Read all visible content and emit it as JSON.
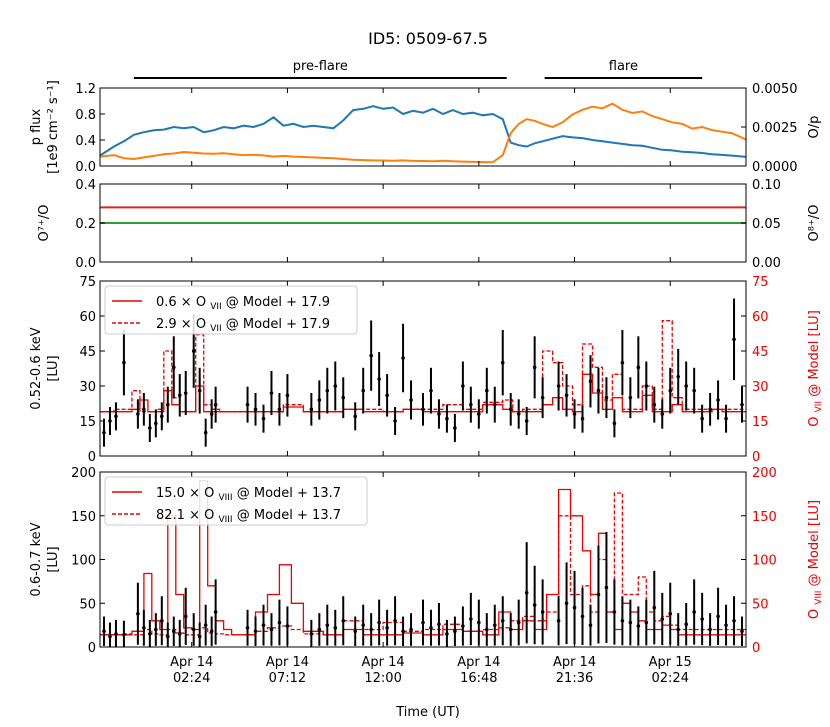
{
  "title": "ID5: 0509-67.5",
  "x_axis": {
    "label": "Time (UT)",
    "range_hours": [
      -2.2,
      30.2
    ],
    "tick_hours": [
      2.4,
      7.2,
      12.0,
      16.8,
      21.6,
      26.4
    ],
    "tick_labels": [
      [
        "Apr 14",
        "02:24"
      ],
      [
        "Apr 14",
        "07:12"
      ],
      [
        "Apr 14",
        "12:00"
      ],
      [
        "Apr 14",
        "16:48"
      ],
      [
        "Apr 14",
        "21:36"
      ],
      [
        "Apr 15",
        "02:24"
      ]
    ]
  },
  "intervals": [
    {
      "label": "pre-flare",
      "start": -0.5,
      "end": 18.2
    },
    {
      "label": "flare",
      "start": 20.1,
      "end": 28.0
    }
  ],
  "colors": {
    "p_flux": "#1f77b4",
    "o_p": "#ff7f0e",
    "o7": "#d62728",
    "o8": "#2ca02c",
    "data": "#000000",
    "model": "#ee0000",
    "interval_bar": "#000000"
  },
  "chart_data": [
    {
      "type": "line",
      "panel": "flux",
      "ylabel": [
        "p flux",
        "[1e9 cm⁻² s⁻¹]"
      ],
      "ylim": [
        0,
        1.2
      ],
      "yticks": [
        0.0,
        0.4,
        0.8,
        1.2
      ],
      "ytick_labels": [
        "0.0",
        "0.4",
        "0.8",
        "1.2"
      ],
      "y2label": "O/p",
      "y2lim": [
        0,
        0.005
      ],
      "y2ticks": [
        0,
        0.0025,
        0.005
      ],
      "y2tick_labels": [
        "0.0000",
        "0.0025",
        "0.0050"
      ],
      "series": [
        {
          "name": "p flux",
          "axis": "left",
          "x": [
            -2.2,
            -1.5,
            -1.0,
            -0.5,
            0.0,
            0.5,
            1.0,
            1.5,
            2.0,
            2.5,
            3.0,
            3.5,
            4.0,
            4.5,
            5.0,
            5.5,
            6.0,
            6.5,
            7.0,
            7.5,
            8.0,
            8.5,
            9.0,
            9.5,
            10.0,
            10.5,
            11.0,
            11.5,
            12.0,
            12.5,
            13.0,
            13.5,
            14.0,
            14.5,
            15.0,
            15.5,
            16.0,
            16.5,
            17.0,
            17.5,
            18.0,
            18.4,
            18.8,
            19.2,
            19.6,
            20.0,
            20.5,
            21.0,
            21.5,
            22.0,
            22.5,
            23.0,
            23.5,
            24.0,
            24.5,
            25.0,
            25.5,
            26.0,
            26.5,
            27.0,
            27.5,
            28.0,
            28.5,
            29.0,
            29.5,
            30.2
          ],
          "values": [
            0.16,
            0.3,
            0.38,
            0.48,
            0.52,
            0.55,
            0.56,
            0.6,
            0.58,
            0.6,
            0.52,
            0.55,
            0.6,
            0.58,
            0.62,
            0.6,
            0.65,
            0.75,
            0.62,
            0.65,
            0.6,
            0.62,
            0.6,
            0.58,
            0.7,
            0.86,
            0.88,
            0.92,
            0.88,
            0.9,
            0.8,
            0.85,
            0.82,
            0.88,
            0.8,
            0.86,
            0.8,
            0.82,
            0.78,
            0.8,
            0.72,
            0.36,
            0.32,
            0.3,
            0.35,
            0.38,
            0.42,
            0.46,
            0.44,
            0.43,
            0.4,
            0.38,
            0.36,
            0.34,
            0.32,
            0.31,
            0.28,
            0.25,
            0.24,
            0.22,
            0.21,
            0.2,
            0.18,
            0.17,
            0.16,
            0.14
          ]
        },
        {
          "name": "O/p",
          "axis": "right",
          "x": [
            -2.2,
            -1.5,
            -1.0,
            -0.5,
            0.0,
            0.5,
            1.0,
            1.5,
            2.0,
            2.5,
            3.0,
            3.5,
            4.0,
            4.5,
            5.0,
            5.5,
            6.0,
            6.5,
            7.0,
            7.5,
            8.0,
            8.5,
            9.0,
            9.5,
            10.0,
            10.5,
            11.0,
            11.5,
            12.0,
            12.5,
            13.0,
            13.5,
            14.0,
            14.5,
            15.0,
            15.5,
            16.0,
            16.5,
            17.0,
            17.5,
            18.0,
            18.4,
            18.8,
            19.2,
            19.6,
            20.0,
            20.5,
            21.0,
            21.5,
            22.0,
            22.5,
            23.0,
            23.5,
            24.0,
            24.5,
            25.0,
            25.5,
            26.0,
            26.5,
            27.0,
            27.5,
            28.0,
            28.5,
            29.0,
            29.5,
            30.2
          ],
          "values": [
            0.0006,
            0.0007,
            0.0005,
            0.00045,
            0.00055,
            0.00065,
            0.00075,
            0.0008,
            0.0009,
            0.00085,
            0.0008,
            0.00078,
            0.00082,
            0.00075,
            0.0007,
            0.00072,
            0.00068,
            0.0006,
            0.00065,
            0.0006,
            0.00058,
            0.00055,
            0.00052,
            0.0005,
            0.00045,
            0.0004,
            0.00038,
            0.00036,
            0.00035,
            0.00034,
            0.00036,
            0.00033,
            0.00032,
            0.0003,
            0.00034,
            0.0003,
            0.00028,
            0.00026,
            0.00025,
            0.00024,
            0.0007,
            0.0021,
            0.0027,
            0.003,
            0.0029,
            0.0027,
            0.0025,
            0.0028,
            0.0033,
            0.0036,
            0.0038,
            0.0037,
            0.004,
            0.0036,
            0.0034,
            0.0035,
            0.0032,
            0.003,
            0.0028,
            0.0027,
            0.0024,
            0.0025,
            0.0023,
            0.0022,
            0.0021,
            0.0017
          ]
        }
      ]
    },
    {
      "type": "line",
      "panel": "abundance",
      "ylabel": "O⁷⁺/O",
      "ylim": [
        0,
        0.4
      ],
      "yticks": [
        0.0,
        0.2,
        0.4
      ],
      "ytick_labels": [
        "0.0",
        "0.2",
        "0.4"
      ],
      "y2label": "O⁸⁺/O",
      "y2lim": [
        0,
        0.1
      ],
      "y2ticks": [
        0,
        0.05,
        0.1
      ],
      "y2tick_labels": [
        "0.00",
        "0.05",
        "0.10"
      ],
      "series": [
        {
          "name": "O7+/O",
          "axis": "left",
          "x": [
            -2.2,
            30.2
          ],
          "values": [
            0.28,
            0.28
          ]
        },
        {
          "name": "O8+/O",
          "axis": "right",
          "x": [
            -2.2,
            30.2
          ],
          "values": [
            0.05,
            0.05
          ]
        }
      ]
    },
    {
      "type": "scatter",
      "panel": "o7",
      "ylabel": [
        "0.52-0.6 keV",
        "[LU]"
      ],
      "ylim": [
        0,
        75
      ],
      "yticks": [
        0,
        15,
        30,
        45,
        60,
        75
      ],
      "ytick_labels": [
        "0",
        "15",
        "30",
        "45",
        "60",
        "75"
      ],
      "y2label": "O VII @ Model [LU]",
      "y2tick_labels": [
        "0",
        "15",
        "30",
        "45",
        "60",
        "75"
      ],
      "legend": {
        "position": "top-left",
        "entries": [
          {
            "label": "0.6 × O VII @ Model + 17.9",
            "ion": "VII",
            "style": "solid"
          },
          {
            "label": "2.9 × O VII @ Model + 17.9",
            "ion": "VII",
            "style": "dashed"
          }
        ]
      },
      "data_x": [
        -2.0,
        -1.7,
        -1.4,
        -1.0,
        -0.3,
        0.0,
        0.3,
        0.6,
        0.9,
        1.2,
        1.5,
        1.8,
        2.1,
        2.5,
        2.8,
        3.1,
        3.4,
        3.6,
        5.2,
        5.6,
        6.0,
        6.4,
        6.8,
        7.2,
        8.4,
        8.8,
        9.2,
        9.6,
        10.0,
        10.6,
        11.0,
        11.4,
        11.8,
        12.2,
        12.6,
        13.0,
        13.4,
        14.0,
        14.4,
        14.8,
        15.2,
        15.6,
        16.0,
        16.4,
        16.8,
        17.2,
        17.6,
        18.0,
        18.4,
        18.8,
        19.2,
        19.6,
        20.0,
        20.8,
        21.2,
        21.6,
        22.0,
        22.4,
        22.8,
        23.2,
        23.6,
        24.0,
        24.4,
        24.8,
        25.2,
        25.6,
        26.0,
        26.4,
        26.8,
        27.2,
        27.6,
        28.0,
        28.4,
        28.8,
        29.2,
        29.6,
        30.0
      ],
      "data_y": [
        10,
        15,
        17,
        40,
        18,
        20,
        12,
        14,
        17,
        22,
        38,
        26,
        27,
        45,
        28,
        10,
        18,
        22,
        22,
        20,
        16,
        27,
        20,
        26,
        20,
        24,
        28,
        30,
        25,
        17,
        28,
        43,
        33,
        26,
        15,
        42,
        24,
        20,
        28,
        18,
        16,
        12,
        30,
        22,
        18,
        28,
        22,
        40,
        20,
        18,
        15,
        38,
        25,
        30,
        26,
        18,
        16,
        32,
        28,
        25,
        14,
        40,
        25,
        38,
        30,
        22,
        18,
        28,
        34,
        30,
        28,
        16,
        20,
        24,
        16,
        50,
        22
      ],
      "model_x": [
        -2.2,
        -1.5,
        -1.0,
        -0.6,
        -0.2,
        0.2,
        0.6,
        1.0,
        1.4,
        1.8,
        2.2,
        2.6,
        3.0,
        3.4,
        3.8,
        4.2,
        5.0,
        6.0,
        7.0,
        8.0,
        9.0,
        10.0,
        11.0,
        12.0,
        13.0,
        14.0,
        15.0,
        16.0,
        17.0,
        18.0,
        18.5,
        19.0,
        19.5,
        20.0,
        20.5,
        21.0,
        21.5,
        22.0,
        22.5,
        23.0,
        23.5,
        24.0,
        24.5,
        25.0,
        25.5,
        26.0,
        26.5,
        27.0,
        27.5,
        28.0,
        28.5,
        29.0,
        29.5,
        30.2
      ],
      "model_solid": [
        19,
        19,
        19,
        20,
        24,
        19,
        19,
        28,
        22,
        19,
        19,
        30,
        19,
        19,
        19,
        19,
        19,
        19,
        21,
        19,
        19,
        20,
        19,
        19,
        20,
        19,
        19,
        19,
        22,
        20,
        19,
        19,
        19,
        22,
        25,
        20,
        19,
        35,
        27,
        20,
        25,
        19,
        19,
        26,
        19,
        19,
        22,
        19,
        19,
        19,
        20,
        19,
        19,
        19
      ],
      "model_dashed": [
        19,
        20,
        20,
        28,
        19,
        19,
        20,
        45,
        25,
        19,
        19,
        52,
        22,
        20,
        19,
        19,
        19,
        19,
        22,
        19,
        19,
        20,
        20,
        19,
        20,
        20,
        22,
        20,
        23,
        24,
        19,
        20,
        20,
        45,
        40,
        30,
        22,
        48,
        38,
        24,
        35,
        20,
        20,
        30,
        20,
        58,
        25,
        20,
        20,
        20,
        20,
        20,
        20,
        20
      ]
    },
    {
      "type": "scatter",
      "panel": "o8",
      "ylabel": [
        "0.6-0.7 keV",
        "[LU]"
      ],
      "ylim": [
        0,
        200
      ],
      "yticks": [
        0,
        50,
        100,
        150,
        200
      ],
      "ytick_labels": [
        "0",
        "50",
        "100",
        "150",
        "200"
      ],
      "y2label": "O VIII @ Model [LU]",
      "y2tick_labels": [
        "0",
        "50",
        "100",
        "150",
        "200"
      ],
      "legend": {
        "position": "top-left",
        "entries": [
          {
            "label": "15.0 × O VIII @ Model + 13.7",
            "ion": "VIII",
            "style": "solid"
          },
          {
            "label": "82.1 × O VIII @ Model + 13.7",
            "ion": "VIII",
            "style": "dashed"
          }
        ]
      },
      "data_x": [
        -2.0,
        -1.7,
        -1.4,
        -1.0,
        -0.3,
        0.0,
        0.3,
        0.6,
        0.9,
        1.2,
        1.5,
        1.8,
        2.1,
        2.5,
        2.8,
        3.1,
        3.4,
        3.6,
        5.2,
        5.6,
        6.0,
        6.4,
        6.8,
        7.2,
        8.4,
        8.8,
        9.2,
        9.6,
        10.0,
        10.6,
        11.0,
        11.4,
        11.8,
        12.2,
        12.6,
        13.0,
        13.4,
        14.0,
        14.4,
        14.8,
        15.2,
        15.6,
        16.0,
        16.4,
        16.8,
        17.2,
        17.6,
        18.0,
        18.4,
        18.8,
        19.2,
        19.6,
        20.0,
        20.8,
        21.2,
        21.6,
        22.0,
        22.4,
        22.8,
        23.2,
        23.6,
        24.0,
        24.4,
        24.8,
        25.2,
        25.6,
        26.0,
        26.4,
        26.8,
        27.2,
        27.6,
        28.0,
        28.4,
        28.8,
        29.2,
        29.6,
        30.0
      ],
      "data_y": [
        18,
        12,
        15,
        14,
        38,
        22,
        15,
        20,
        30,
        12,
        18,
        15,
        35,
        20,
        12,
        25,
        18,
        40,
        22,
        18,
        25,
        20,
        28,
        24,
        15,
        20,
        25,
        22,
        30,
        18,
        25,
        20,
        28,
        22,
        30,
        18,
        20,
        28,
        22,
        26,
        15,
        18,
        24,
        32,
        28,
        20,
        25,
        30,
        20,
        28,
        62,
        48,
        40,
        30,
        50,
        45,
        35,
        25,
        60,
        68,
        40,
        30,
        28,
        24,
        28,
        45,
        32,
        38,
        20,
        26,
        40,
        32,
        20,
        35,
        25,
        30,
        18
      ],
      "model_x": [
        -2.2,
        -1.5,
        -1.0,
        -0.6,
        0.0,
        0.4,
        0.8,
        1.2,
        1.6,
        2.0,
        2.4,
        2.8,
        3.2,
        3.6,
        4.0,
        4.4,
        5.0,
        5.6,
        6.2,
        6.8,
        7.4,
        8.0,
        9.0,
        10.0,
        11.0,
        12.0,
        13.0,
        14.0,
        15.0,
        16.0,
        17.0,
        17.8,
        18.4,
        19.0,
        19.6,
        20.2,
        20.8,
        21.4,
        22.0,
        22.4,
        22.8,
        23.2,
        23.6,
        24.0,
        24.4,
        24.8,
        25.2,
        25.6,
        26.0,
        26.4,
        26.8,
        27.2,
        27.6,
        28.0,
        28.6,
        29.2,
        30.2
      ],
      "model_solid": [
        14,
        14,
        14,
        18,
        84,
        30,
        20,
        150,
        60,
        22,
        20,
        190,
        70,
        30,
        20,
        14,
        14,
        40,
        60,
        94,
        50,
        18,
        14,
        20,
        14,
        14,
        16,
        14,
        20,
        18,
        14,
        40,
        20,
        30,
        20,
        60,
        180,
        150,
        110,
        60,
        130,
        40,
        20,
        50,
        40,
        30,
        20,
        20,
        25,
        20,
        14,
        14,
        14,
        14,
        14,
        14,
        14
      ],
      "model_dashed": [
        14,
        14,
        15,
        14,
        20,
        15,
        14,
        20,
        16,
        14,
        14,
        22,
        16,
        15,
        14,
        14,
        14,
        18,
        22,
        24,
        20,
        15,
        14,
        30,
        20,
        28,
        18,
        20,
        26,
        18,
        20,
        22,
        30,
        35,
        30,
        40,
        150,
        60,
        70,
        40,
        100,
        40,
        176,
        60,
        60,
        80,
        40,
        30,
        35,
        25,
        20,
        20,
        20,
        20,
        20,
        20,
        20
      ]
    }
  ]
}
